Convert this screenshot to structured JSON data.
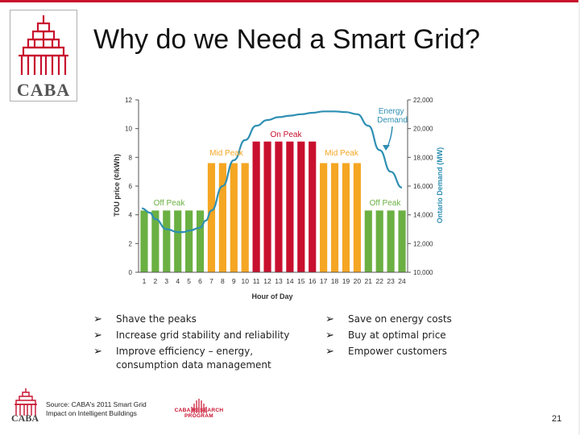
{
  "slide": {
    "title": "Why do we Need a Smart Grid?",
    "logo_text": "CABA",
    "page_number": "21",
    "source": [
      "Source: CABA's 2011 Smart Grid",
      "Impact on Intelligent Buildings"
    ],
    "program_logo": [
      "CABA RESEARCH",
      "PROGRAM"
    ]
  },
  "bullets_left": [
    "Shave the peaks",
    "Increase grid stability and reliability",
    "Improve efficiency – energy, consumption data management"
  ],
  "bullets_right": [
    "Save on energy costs",
    "Buy at optimal price",
    "Empower customers"
  ],
  "colors": {
    "off_peak": "#6bb043",
    "mid_peak": "#f5a623",
    "on_peak": "#c8102e",
    "demand": "#2e8fb3",
    "brand": "#c8102e"
  },
  "chart_data": {
    "type": "bar",
    "categories": [
      "1",
      "2",
      "3",
      "4",
      "5",
      "6",
      "7",
      "8",
      "9",
      "10",
      "11",
      "12",
      "13",
      "14",
      "15",
      "16",
      "17",
      "18",
      "19",
      "20",
      "21",
      "22",
      "23",
      "24"
    ],
    "values": [
      4.3,
      4.3,
      4.3,
      4.3,
      4.3,
      4.3,
      7.6,
      7.6,
      7.6,
      7.6,
      9.1,
      9.1,
      9.1,
      9.1,
      9.1,
      9.1,
      7.6,
      7.6,
      7.6,
      7.6,
      4.3,
      4.3,
      4.3,
      4.3
    ],
    "tiers": [
      "off",
      "off",
      "off",
      "off",
      "off",
      "off",
      "mid",
      "mid",
      "mid",
      "mid",
      "on",
      "on",
      "on",
      "on",
      "on",
      "on",
      "mid",
      "mid",
      "mid",
      "mid",
      "off",
      "off",
      "off",
      "off"
    ],
    "xlabel": "Hour of Day",
    "ylabel": "TOU price (¢/kWh)",
    "ylim": [
      0,
      12
    ],
    "yticks": [
      0,
      2,
      4,
      6,
      8,
      10,
      12
    ],
    "y2label": "Ontario Demand (MW)",
    "y2lim": [
      10000,
      22000
    ],
    "y2ticks": [
      "10,000",
      "12,000",
      "14,000",
      "16,000",
      "18,000",
      "20,000",
      "22,000"
    ],
    "y2tick_values": [
      10000,
      12000,
      14000,
      16000,
      18000,
      20000,
      22000
    ],
    "demand_series": {
      "name": "Energy Demand",
      "x": [
        0.8,
        1.5,
        2,
        3,
        4,
        4.5,
        5,
        6,
        6.5,
        7,
        8,
        9,
        10,
        11,
        12,
        13,
        14,
        15,
        16,
        17,
        18,
        19,
        20,
        21,
        22,
        23,
        24
      ],
      "values": [
        14450,
        14150,
        13700,
        13000,
        12800,
        12800,
        12900,
        13100,
        13600,
        14300,
        16000,
        17800,
        19200,
        20200,
        20600,
        20800,
        20900,
        21000,
        21100,
        21200,
        21200,
        21150,
        21000,
        20200,
        18500,
        17000,
        15900
      ]
    },
    "annotations": [
      "Off Peak",
      "Mid Peak",
      "On Peak",
      "Mid Peak",
      "Off Peak",
      "Energy Demand"
    ]
  }
}
